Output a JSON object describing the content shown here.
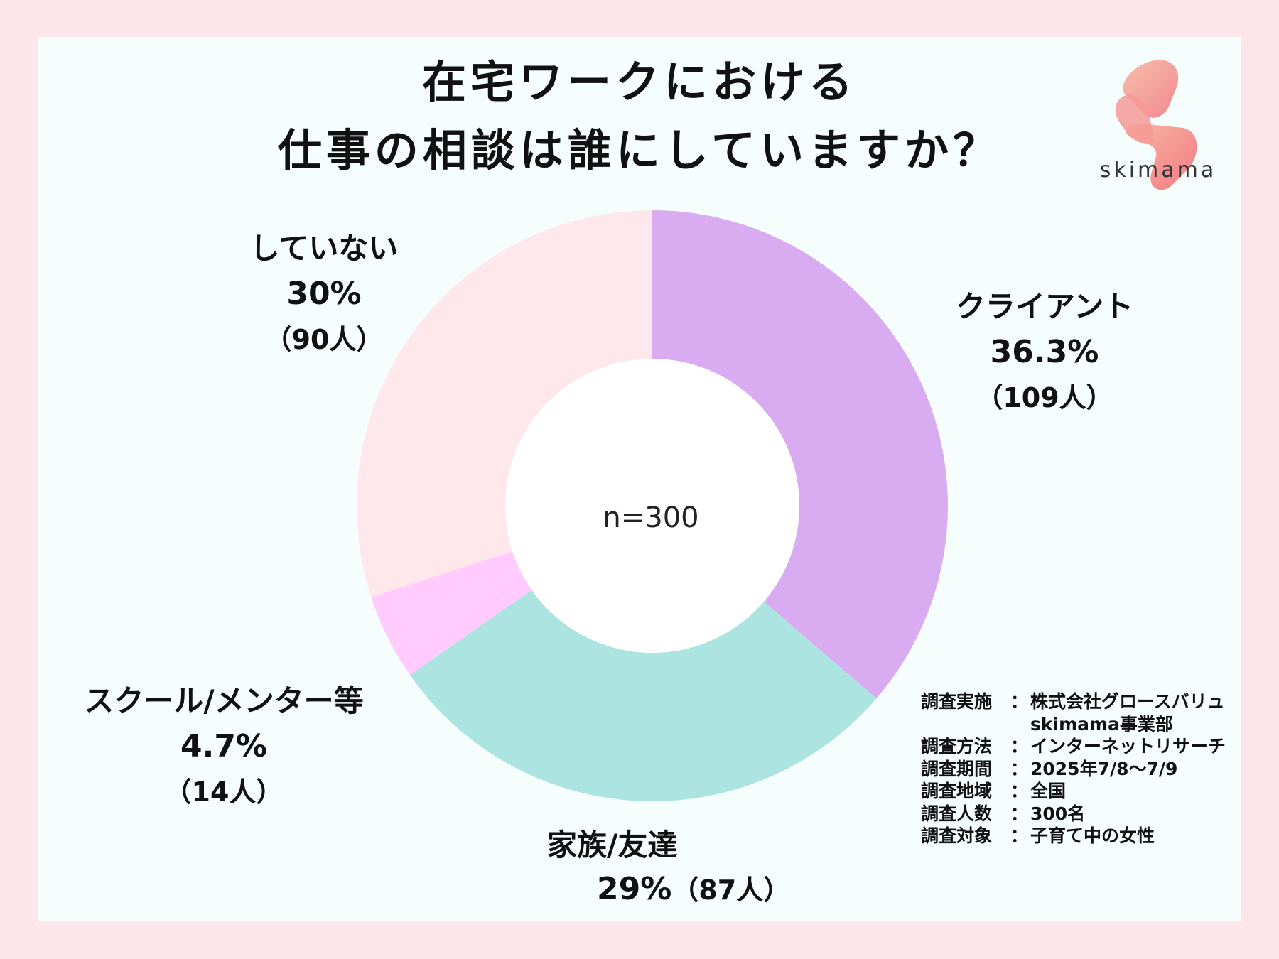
{
  "title": {
    "line1": "在宅ワークにおける",
    "line2": "仕事の相談は誰にしていますか？"
  },
  "brand": {
    "name": "skimama",
    "colors": {
      "from": "#f7b8a0",
      "to": "#f27a86"
    }
  },
  "colors": {
    "background": "#fde6ea",
    "card": "#f5fdfd"
  },
  "chart_data": {
    "type": "pie",
    "variant": "donut",
    "title": "在宅ワークにおける仕事の相談は誰にしていますか？",
    "center_label": "n=300",
    "total": 300,
    "slices": [
      {
        "name": "クライアント",
        "percent": 36.3,
        "percent_label": "36.3%",
        "count": 109,
        "count_label": "（109人）",
        "color": "#d9acf2"
      },
      {
        "name": "家族/友達",
        "percent": 29,
        "percent_label": "29%",
        "count": 87,
        "count_label": "（87人）",
        "color": "#ace4e1"
      },
      {
        "name": "スクール/メンター等",
        "percent": 4.7,
        "percent_label": "4.7%",
        "count": 14,
        "count_label": "（14人）",
        "color": "#ffccfd"
      },
      {
        "name": "していない",
        "percent": 30,
        "percent_label": "30%",
        "count": 90,
        "count_label": "（90人）",
        "color": "#ffe8eb"
      }
    ]
  },
  "survey": {
    "items": [
      {
        "key": "調査実施",
        "sep": "：",
        "value": "株式会社グロースバリュ"
      },
      {
        "key": "",
        "sep": "",
        "value": "skimama事業部"
      },
      {
        "key": "調査方法",
        "sep": "：",
        "value": "インターネットリサーチ"
      },
      {
        "key": "調査期間",
        "sep": "：",
        "value": "2025年7/8〜7/9"
      },
      {
        "key": "調査地域",
        "sep": "：",
        "value": "全国"
      },
      {
        "key": "調査人数",
        "sep": "：",
        "value": "300名"
      },
      {
        "key": "調査対象",
        "sep": "：",
        "value": "子育て中の女性"
      }
    ]
  }
}
